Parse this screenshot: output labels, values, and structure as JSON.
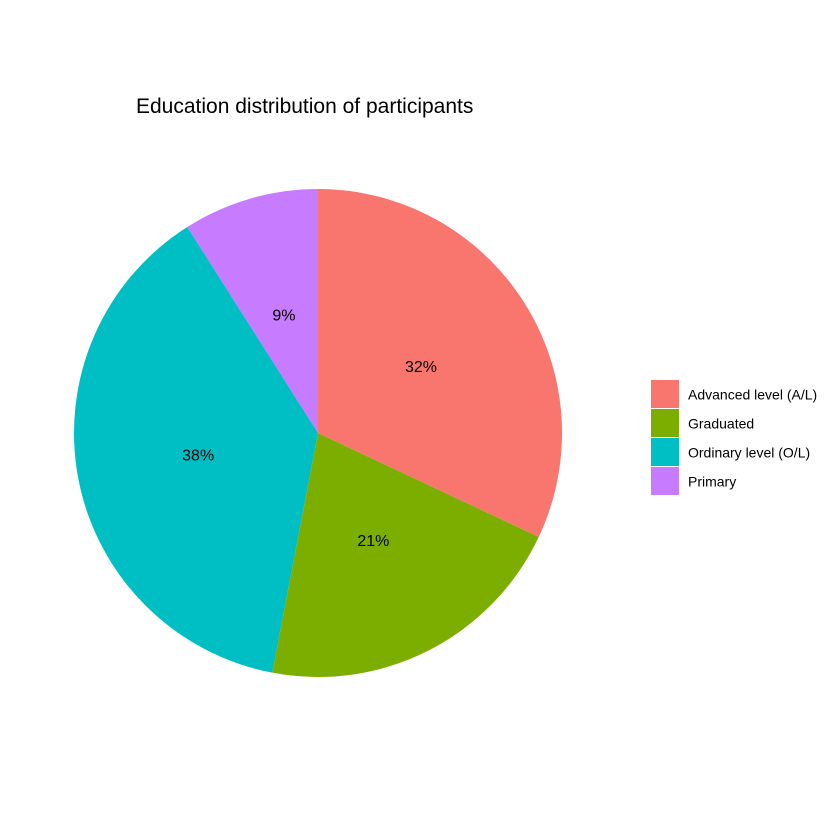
{
  "chart_data": {
    "type": "pie",
    "title": "Education distribution of participants",
    "start_angle_deg": 0,
    "direction": "counterclockwise",
    "slices": [
      {
        "name": "Primary",
        "value": 9,
        "label": "9%",
        "color": "#C77CFF"
      },
      {
        "name": "Ordinary level (O/L)",
        "value": 38,
        "label": "38%",
        "color": "#00BFC4"
      },
      {
        "name": "Graduated",
        "value": 21,
        "label": "21%",
        "color": "#7CAE00"
      },
      {
        "name": "Advanced level (A/L)",
        "value": 32,
        "label": "32%",
        "color": "#F8766D"
      }
    ],
    "legend": {
      "position": "right",
      "entries": [
        {
          "label": "Advanced level (A/L)",
          "color": "#F8766D"
        },
        {
          "label": "Graduated",
          "color": "#7CAE00"
        },
        {
          "label": "Ordinary level (O/L)",
          "color": "#00BFC4"
        },
        {
          "label": "Primary",
          "color": "#C77CFF"
        }
      ]
    }
  }
}
